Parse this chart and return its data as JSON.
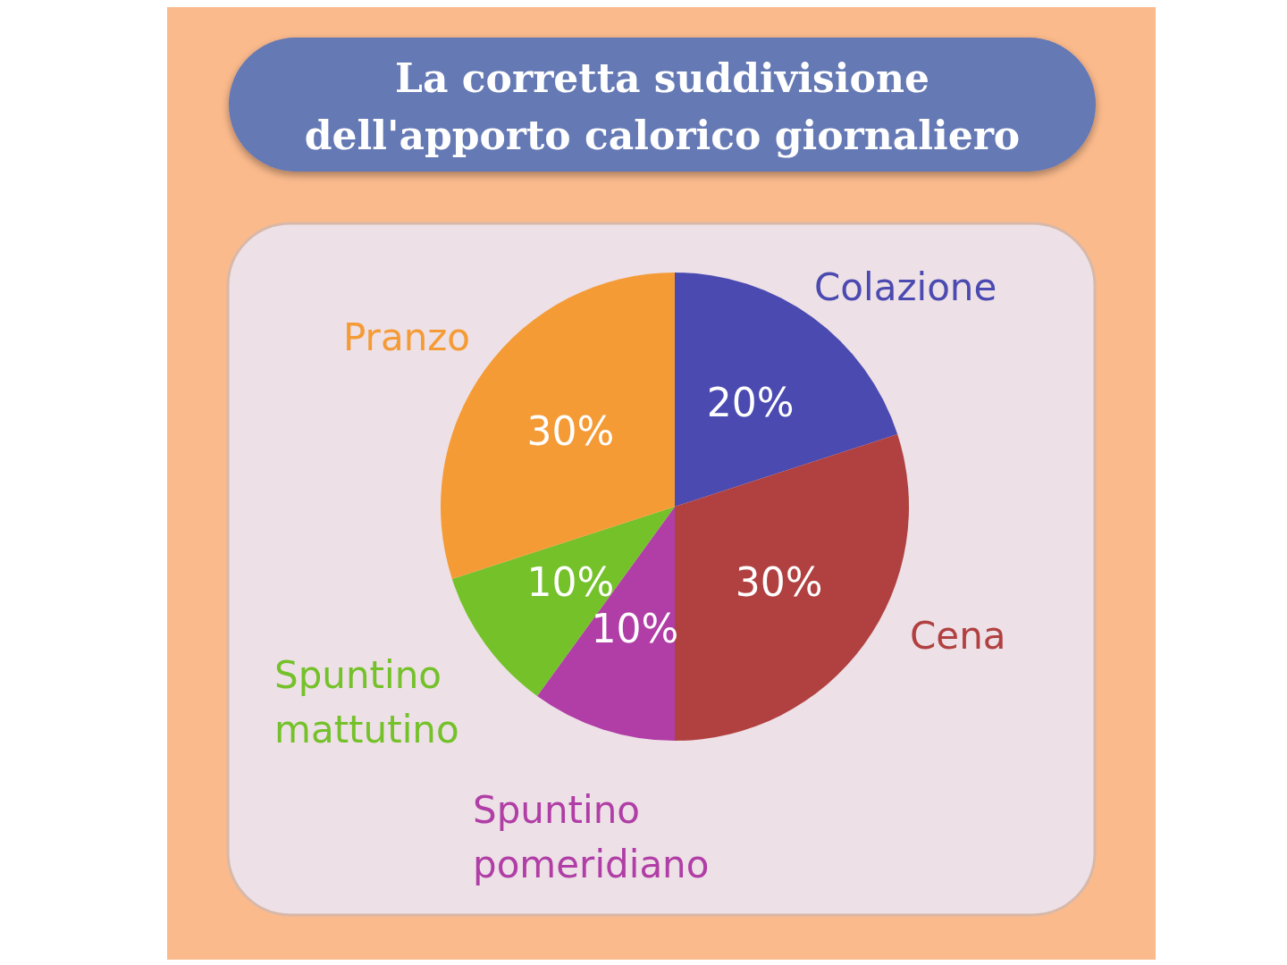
{
  "chart_data": {
    "type": "pie",
    "title": "La corretta suddivisione dell'apporto calorico giornaliero",
    "categories": [
      "Colazione",
      "Cena",
      "Spuntino pomeridiano",
      "Spuntino mattutino",
      "Pranzo"
    ],
    "values": [
      20,
      30,
      10,
      10,
      30
    ],
    "colors": [
      "#4b4ab1",
      "#b14141",
      "#b03ea6",
      "#74c12a",
      "#f59b36"
    ],
    "value_labels": [
      "20%",
      "30%",
      "10%",
      "10%",
      "30%"
    ]
  }
}
